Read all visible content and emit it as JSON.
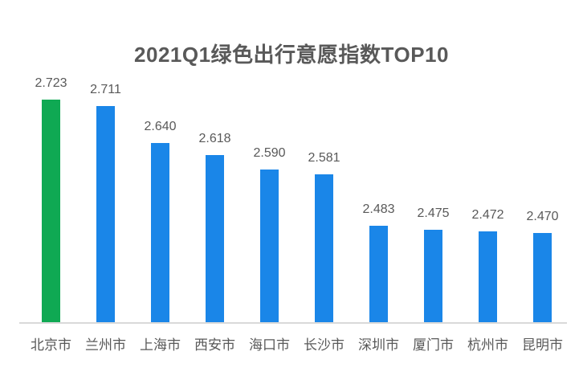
{
  "chart_data": {
    "type": "bar",
    "title": "2021Q1绿色出行意愿指数TOP10",
    "categories": [
      "北京市",
      "兰州市",
      "上海市",
      "西安市",
      "海口市",
      "长沙市",
      "深圳市",
      "厦门市",
      "杭州市",
      "昆明市"
    ],
    "values": [
      2.723,
      2.711,
      2.64,
      2.618,
      2.59,
      2.581,
      2.483,
      2.475,
      2.472,
      2.47
    ],
    "value_labels": [
      "2.723",
      "2.711",
      "2.640",
      "2.618",
      "2.590",
      "2.581",
      "2.483",
      "2.475",
      "2.472",
      "2.470"
    ],
    "xlabel": "",
    "ylabel": "",
    "ylim": [
      2.3,
      2.75
    ],
    "grid": false,
    "legend": "none",
    "data_labels": "above-bars",
    "highlight_index": 0,
    "colors": {
      "bar": "#1a86e8",
      "highlight_bar": "#0fa953",
      "title_text": "#595959",
      "label_text": "#595959",
      "axis_line": "#d9d9d9",
      "background": "#ffffff"
    }
  }
}
